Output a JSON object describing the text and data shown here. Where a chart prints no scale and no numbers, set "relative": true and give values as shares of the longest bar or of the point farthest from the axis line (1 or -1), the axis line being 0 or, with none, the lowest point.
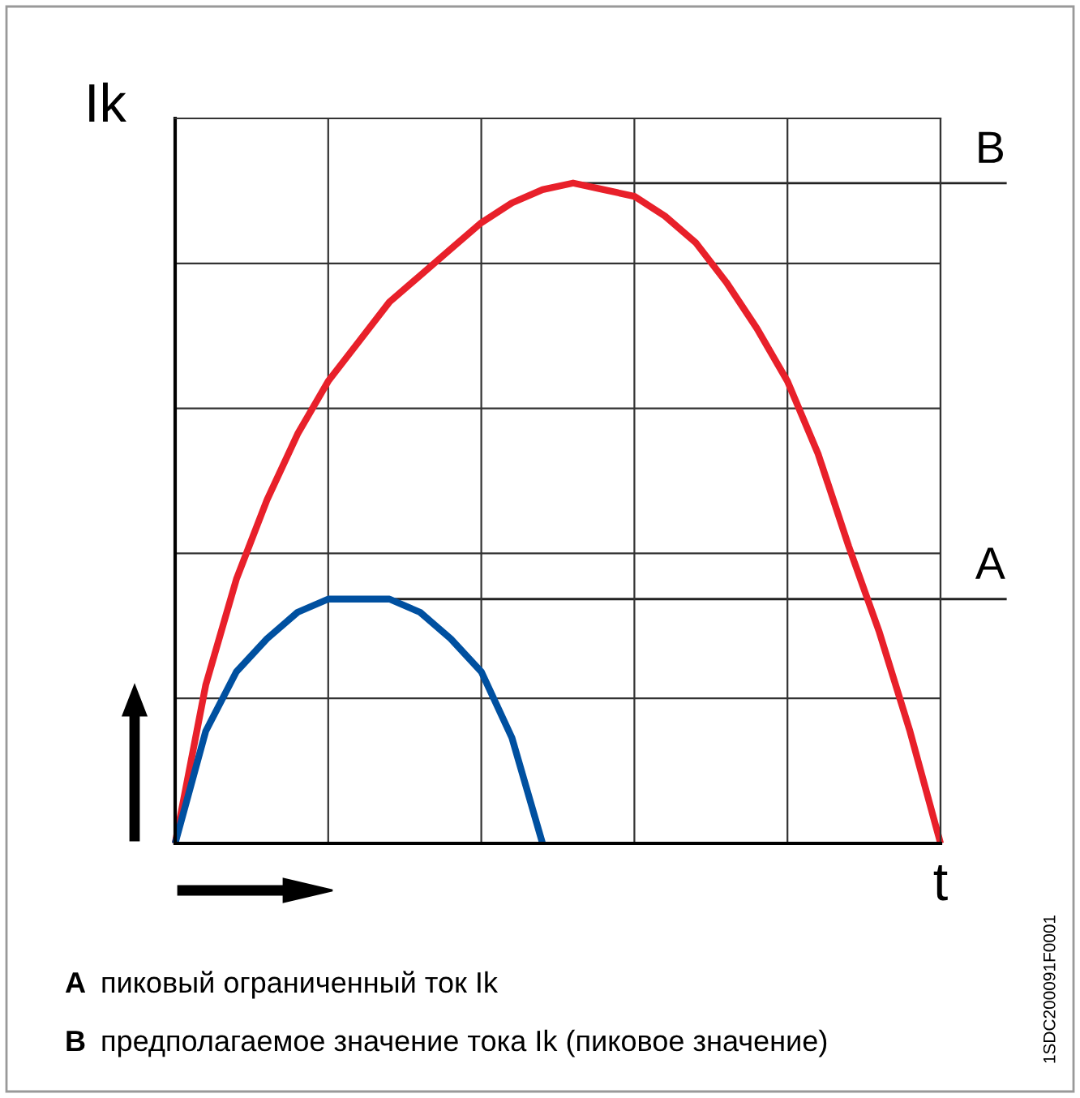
{
  "chart_data": {
    "type": "line",
    "relative": true,
    "xlabel": "t",
    "ylabel": "Ik",
    "grid": true,
    "tick_labels": false,
    "legend": false,
    "marker": "none",
    "line_style": "solid",
    "categories": [
      null,
      null,
      null,
      null,
      null,
      null,
      null,
      null,
      null,
      null,
      null,
      null,
      null,
      null,
      null,
      null,
      null,
      null,
      null,
      null,
      null,
      null,
      null,
      null,
      null,
      null
    ],
    "series": [
      {
        "color": "#e8202a",
        "values": [
          0,
          0.24,
          0.4,
          0.52,
          0.62,
          0.7,
          0.76,
          0.82,
          0.86,
          0.9,
          0.94,
          0.97,
          0.99,
          1,
          0.99,
          0.98,
          0.95,
          0.91,
          0.85,
          0.78,
          0.7,
          0.59,
          0.45,
          0.32,
          0.17,
          0
        ]
      },
      {
        "color": "#0050a0",
        "values": [
          0,
          0.17,
          0.26,
          0.31,
          0.35,
          0.37,
          0.37,
          0.37,
          0.35,
          0.31,
          0.26,
          0.16,
          0,
          null,
          null,
          null,
          null,
          null,
          null,
          null,
          null,
          null,
          null,
          null,
          null,
          null
        ]
      }
    ],
    "ref_lines": [
      {
        "axis": "y",
        "value": 1,
        "label": "B",
        "color": "#222222"
      },
      {
        "axis": "y",
        "value": 0.37,
        "label": "A",
        "color": "#222222"
      }
    ],
    "annotations": [
      "A пиковый ограниченный ток Ik",
      "B предполагаемое значение тока Ik (пиковое значение)",
      "1SDC200091F0001"
    ]
  }
}
